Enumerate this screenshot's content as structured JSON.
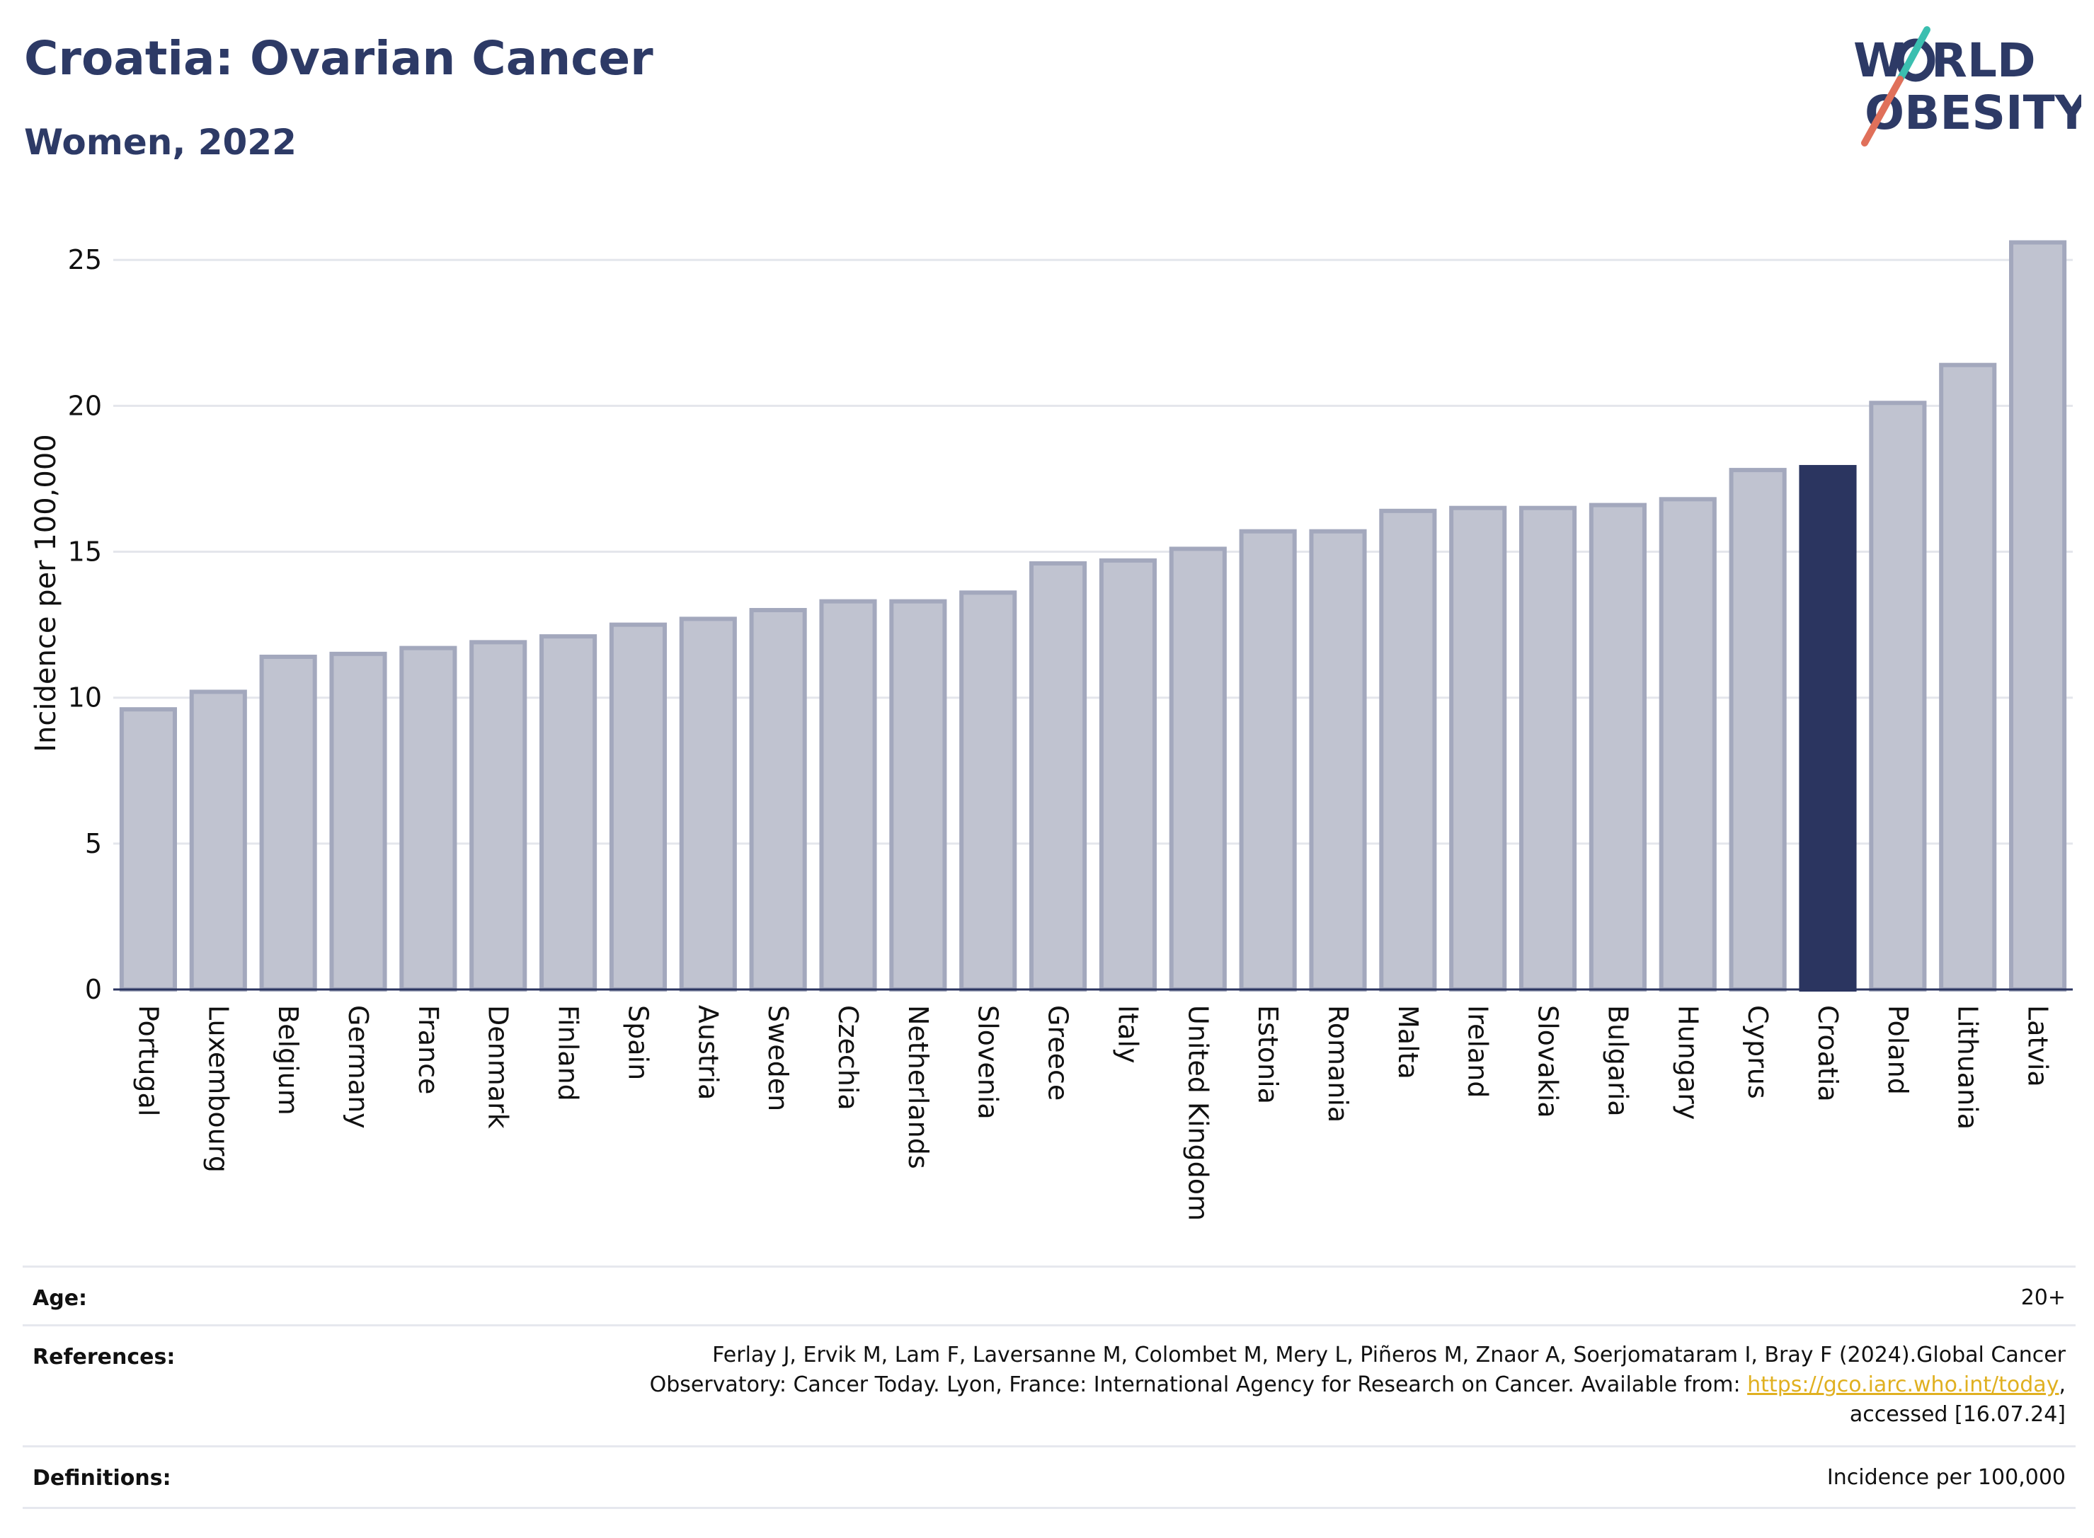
{
  "header": {
    "title": "Croatia: Ovarian Cancer",
    "subtitle": "Women, 2022",
    "logo_top": "W RLD",
    "logo_bottom": "OBESITY"
  },
  "chart_data": {
    "type": "bar",
    "title": "Croatia: Ovarian Cancer",
    "subtitle": "Women, 2022",
    "ylabel": "Incidence per 100,000",
    "xlabel": "",
    "ylim": [
      0,
      26
    ],
    "yticks": [
      0,
      5,
      10,
      15,
      20,
      25
    ],
    "grid": true,
    "highlight": "Croatia",
    "colors": {
      "bar": "#c0c3d0",
      "bar_edge": "#a3a8bd",
      "highlight": "#2b3560",
      "grid": "#e4e6ec",
      "axis": "#2b3560"
    },
    "categories": [
      "Portugal",
      "Luxembourg",
      "Belgium",
      "Germany",
      "France",
      "Denmark",
      "Finland",
      "Spain",
      "Austria",
      "Sweden",
      "Czechia",
      "Netherlands",
      "Slovenia",
      "Greece",
      "Italy",
      "United Kingdom",
      "Estonia",
      "Romania",
      "Malta",
      "Ireland",
      "Slovakia",
      "Bulgaria",
      "Hungary",
      "Cyprus",
      "Croatia",
      "Poland",
      "Lithuania",
      "Latvia"
    ],
    "values": [
      9.6,
      10.2,
      11.4,
      11.5,
      11.7,
      11.9,
      12.1,
      12.5,
      12.7,
      13.0,
      13.3,
      13.3,
      13.6,
      14.6,
      14.7,
      15.1,
      15.7,
      15.7,
      16.4,
      16.5,
      16.5,
      16.6,
      16.8,
      17.8,
      17.9,
      20.1,
      21.4,
      25.6
    ]
  },
  "meta": {
    "age_label": "Age:",
    "age_value": "20+",
    "references_label": "References:",
    "references_line1": "Ferlay J, Ervik M, Lam F, Laversanne M, Colombet M, Mery L, Piñeros M, Znaor A, Soerjomataram I, Bray F (2024).Global Cancer",
    "references_line2_pre": "Observatory: Cancer Today. Lyon, France: International Agency for Research on Cancer. Available from: ",
    "references_link": "https://gco.iarc.who.int/today",
    "references_line2_post": ",",
    "references_line3": "accessed [16.07.24]",
    "definitions_label": "Definitions:",
    "definitions_value": "Incidence per 100,000"
  }
}
